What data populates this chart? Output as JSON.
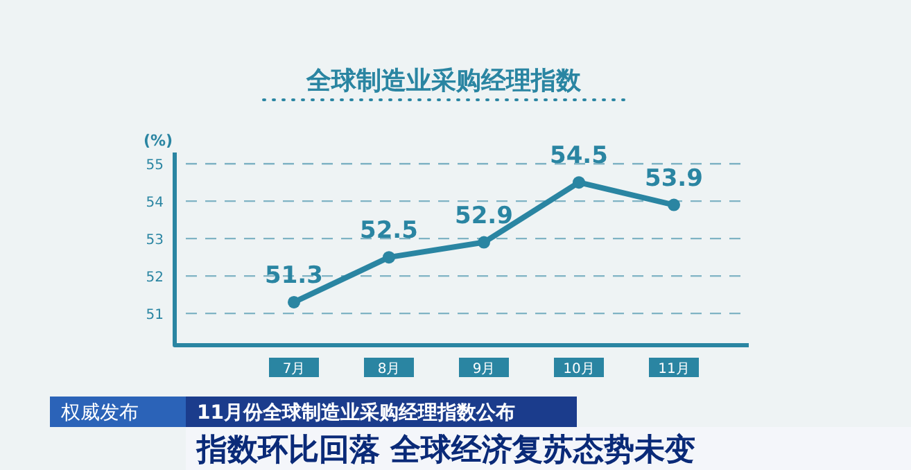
{
  "chart_data": {
    "type": "line",
    "title": "全球制造业采购经理指数",
    "ylabel": "(%)",
    "categories": [
      "7月",
      "8月",
      "9月",
      "10月",
      "11月"
    ],
    "series": [
      {
        "color": "#2a85a2",
        "values": [
          51.3,
          52.5,
          52.9,
          54.5,
          53.9
        ]
      }
    ],
    "ylim": [
      50.15,
      55.3
    ],
    "yticks": [
      51,
      52,
      53,
      54,
      55
    ],
    "grid": "y",
    "marker": "circle",
    "data_labels": true,
    "annotations": [
      "权威发布",
      "11月份全球制造业采购经理指数公布",
      "指数环比回落 全球经济复苏态势未变"
    ]
  }
}
